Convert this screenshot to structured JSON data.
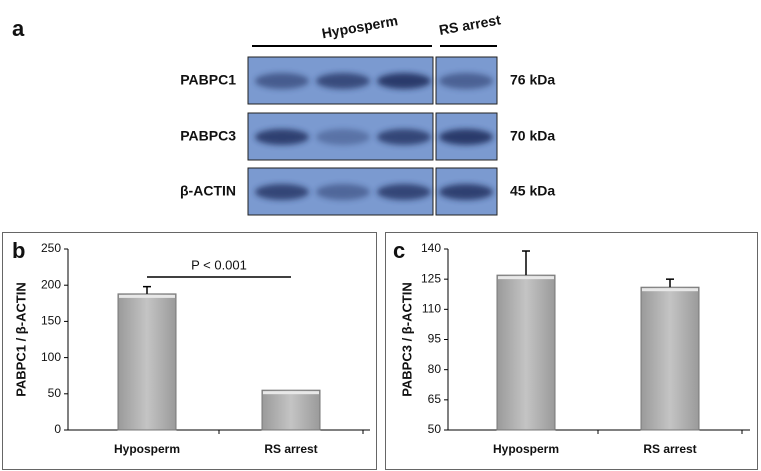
{
  "panel_a": {
    "label": "a",
    "groups": [
      "Hyposperm",
      "RS arrest"
    ],
    "rows": [
      {
        "protein": "PABPC1",
        "size": "76 kDa"
      },
      {
        "protein": "PABPC3",
        "size": "70 kDa"
      },
      {
        "protein": "β-ACTIN",
        "size": "45 kDa"
      }
    ]
  },
  "chart_data": [
    {
      "type": "bar",
      "panel_label": "b",
      "y_label": "PABPC1 / β-ACTIN",
      "categories": [
        "Hyposperm",
        "RS arrest"
      ],
      "values": [
        188,
        55
      ],
      "errors": [
        10,
        null
      ],
      "color": "#b3b3b3",
      "ylim": [
        0,
        250
      ],
      "yticks": [
        0,
        50,
        100,
        150,
        200,
        250
      ],
      "annotation": "P < 0.001"
    },
    {
      "type": "bar",
      "panel_label": "c",
      "y_label": "PABPC3 / β-ACTIN",
      "categories": [
        "Hyposperm",
        "RS arrest"
      ],
      "values": [
        127,
        121
      ],
      "errors": [
        12,
        4
      ],
      "color": "#b3b3b3",
      "ylim": [
        50,
        140
      ],
      "yticks": [
        50,
        65,
        80,
        95,
        110,
        125,
        140
      ]
    }
  ]
}
